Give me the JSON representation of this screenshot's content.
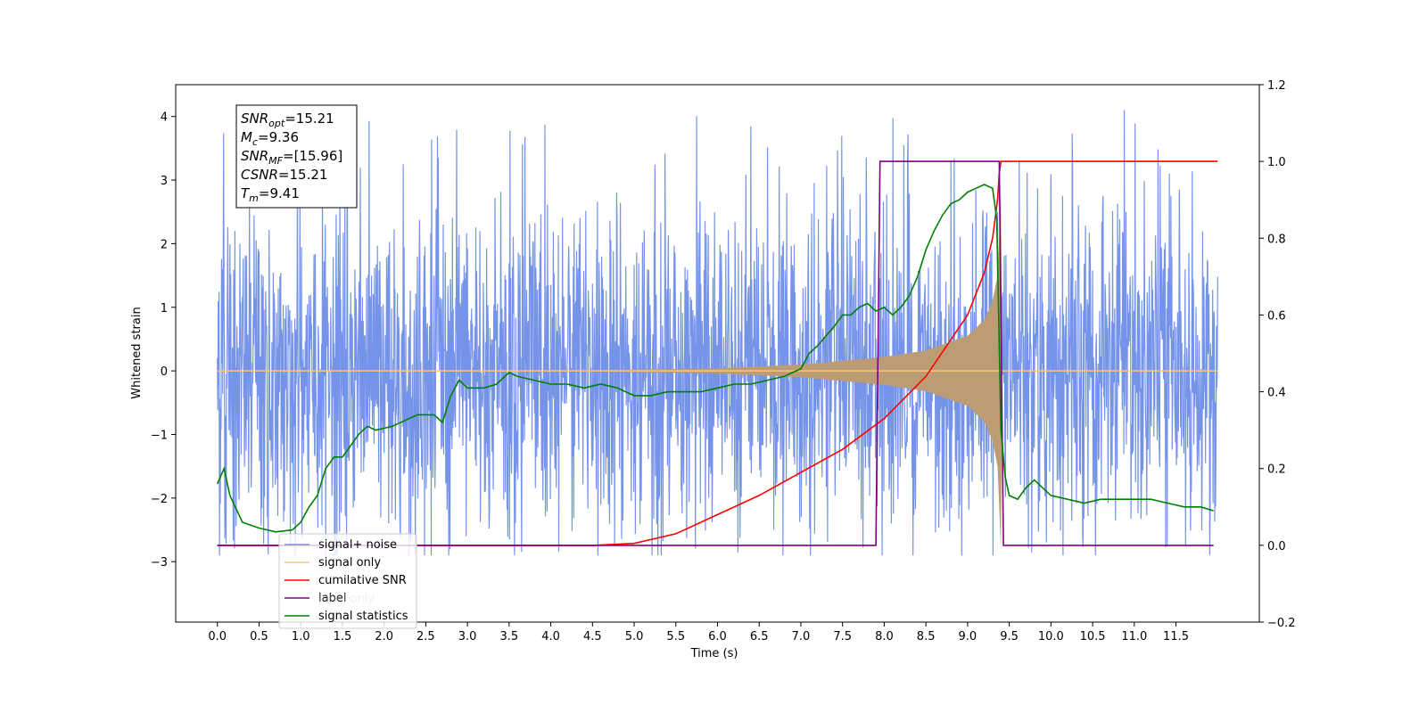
{
  "chart_data": {
    "type": "line",
    "xlabel": "Time (s)",
    "ylabel": "Whitened strain",
    "ylabel_right": "",
    "xlim": [
      -0.5,
      12.5
    ],
    "ylim_left": [
      -3.95,
      4.5
    ],
    "ylim_right": [
      -0.2,
      1.2
    ],
    "xticks": [
      "0.0",
      "0.5",
      "1.0",
      "1.5",
      "2.0",
      "2.5",
      "3.0",
      "3.5",
      "4.0",
      "4.5",
      "5.0",
      "5.5",
      "6.0",
      "6.5",
      "7.0",
      "7.5",
      "8.0",
      "8.5",
      "9.0",
      "9.5",
      "10.0",
      "10.5",
      "11.0",
      "11.5"
    ],
    "yticks_left": [
      "−3",
      "−2",
      "−1",
      "0",
      "1",
      "2",
      "3",
      "4"
    ],
    "yticks_right": [
      "−0.2",
      "0.0",
      "0.2",
      "0.4",
      "0.6",
      "0.8",
      "1.0",
      "1.2"
    ],
    "legend_placement": "lower-left",
    "grid": false,
    "annotation": {
      "lines": [
        {
          "base": "SNR",
          "sub": "opt",
          "value": "=15.21"
        },
        {
          "base": "M",
          "sub": "c",
          "value": "=9.36"
        },
        {
          "base": "SNR",
          "sub": "MF",
          "value": "=[15.96]"
        },
        {
          "base": "CSNR",
          "sub": "",
          "value": "=15.21"
        },
        {
          "base": "T",
          "sub": "m",
          "value": "=9.41"
        }
      ]
    },
    "series": [
      {
        "name": "signal+ noise",
        "color": "#7593e8",
        "axis": "left",
        "x_range": [
          0.0,
          12.0
        ],
        "noise_band": [
          -2.9,
          4.1
        ],
        "envelope_amplitude": 1.6
      },
      {
        "name": "signal only",
        "color": "#ffc478",
        "axis": "left",
        "x_range": [
          0.0,
          12.0
        ],
        "chirp_envelope": [
          [
            0.0,
            0.0
          ],
          [
            4.5,
            0.01
          ],
          [
            6.0,
            0.04
          ],
          [
            7.0,
            0.1
          ],
          [
            8.0,
            0.22
          ],
          [
            8.5,
            0.32
          ],
          [
            9.0,
            0.55
          ],
          [
            9.2,
            0.8
          ],
          [
            9.3,
            1.1
          ],
          [
            9.36,
            1.5
          ],
          [
            9.4,
            2.8
          ],
          [
            9.41,
            0.0
          ],
          [
            12.0,
            0.0
          ]
        ]
      },
      {
        "name": "cumilative SNR",
        "color": "#ff0000",
        "axis": "right",
        "x": [
          0.0,
          4.5,
          5.0,
          5.5,
          6.0,
          6.5,
          7.0,
          7.5,
          8.0,
          8.5,
          9.0,
          9.2,
          9.3,
          9.36,
          9.38,
          9.4,
          12.0
        ],
        "values": [
          0.0,
          0.0,
          0.005,
          0.03,
          0.08,
          0.13,
          0.19,
          0.25,
          0.33,
          0.44,
          0.6,
          0.71,
          0.8,
          0.9,
          0.97,
          1.0,
          1.0
        ]
      },
      {
        "name": "label",
        "color": "#800080",
        "axis": "right",
        "x": [
          0.0,
          7.9,
          7.95,
          9.38,
          9.43,
          11.95
        ],
        "values": [
          0.0,
          0.0,
          1.0,
          1.0,
          0.0,
          0.0
        ]
      },
      {
        "name": "label only",
        "color": "#800080",
        "axis": "right"
      },
      {
        "name": "signal statistics",
        "color": "#008000",
        "axis": "right",
        "x": [
          0.0,
          0.08,
          0.15,
          0.3,
          0.5,
          0.7,
          0.9,
          1.0,
          1.1,
          1.2,
          1.3,
          1.4,
          1.5,
          1.6,
          1.7,
          1.8,
          1.9,
          2.1,
          2.3,
          2.4,
          2.5,
          2.6,
          2.7,
          2.8,
          2.9,
          3.0,
          3.2,
          3.35,
          3.5,
          3.6,
          3.8,
          4.0,
          4.2,
          4.4,
          4.6,
          4.8,
          5.0,
          5.2,
          5.4,
          5.6,
          5.8,
          6.0,
          6.2,
          6.4,
          6.6,
          6.8,
          6.9,
          7.0,
          7.1,
          7.2,
          7.4,
          7.5,
          7.6,
          7.7,
          7.8,
          7.9,
          8.0,
          8.1,
          8.2,
          8.3,
          8.4,
          8.5,
          8.6,
          8.7,
          8.8,
          8.9,
          9.0,
          9.1,
          9.2,
          9.3,
          9.35,
          9.4,
          9.45,
          9.5,
          9.6,
          9.7,
          9.8,
          10.0,
          10.2,
          10.4,
          10.6,
          10.8,
          11.0,
          11.2,
          11.4,
          11.6,
          11.8,
          11.95
        ],
        "values": [
          0.16,
          0.2,
          0.13,
          0.06,
          0.045,
          0.035,
          0.04,
          0.06,
          0.1,
          0.13,
          0.2,
          0.23,
          0.23,
          0.26,
          0.29,
          0.31,
          0.3,
          0.31,
          0.33,
          0.34,
          0.34,
          0.34,
          0.32,
          0.39,
          0.43,
          0.41,
          0.41,
          0.42,
          0.45,
          0.44,
          0.43,
          0.42,
          0.42,
          0.41,
          0.42,
          0.41,
          0.39,
          0.39,
          0.4,
          0.4,
          0.4,
          0.41,
          0.42,
          0.42,
          0.43,
          0.44,
          0.45,
          0.46,
          0.5,
          0.52,
          0.57,
          0.6,
          0.6,
          0.62,
          0.63,
          0.61,
          0.62,
          0.6,
          0.62,
          0.65,
          0.7,
          0.77,
          0.82,
          0.86,
          0.89,
          0.9,
          0.92,
          0.93,
          0.94,
          0.93,
          0.85,
          0.3,
          0.18,
          0.13,
          0.12,
          0.15,
          0.17,
          0.13,
          0.12,
          0.11,
          0.12,
          0.12,
          0.12,
          0.12,
          0.11,
          0.1,
          0.1,
          0.09
        ]
      }
    ]
  }
}
